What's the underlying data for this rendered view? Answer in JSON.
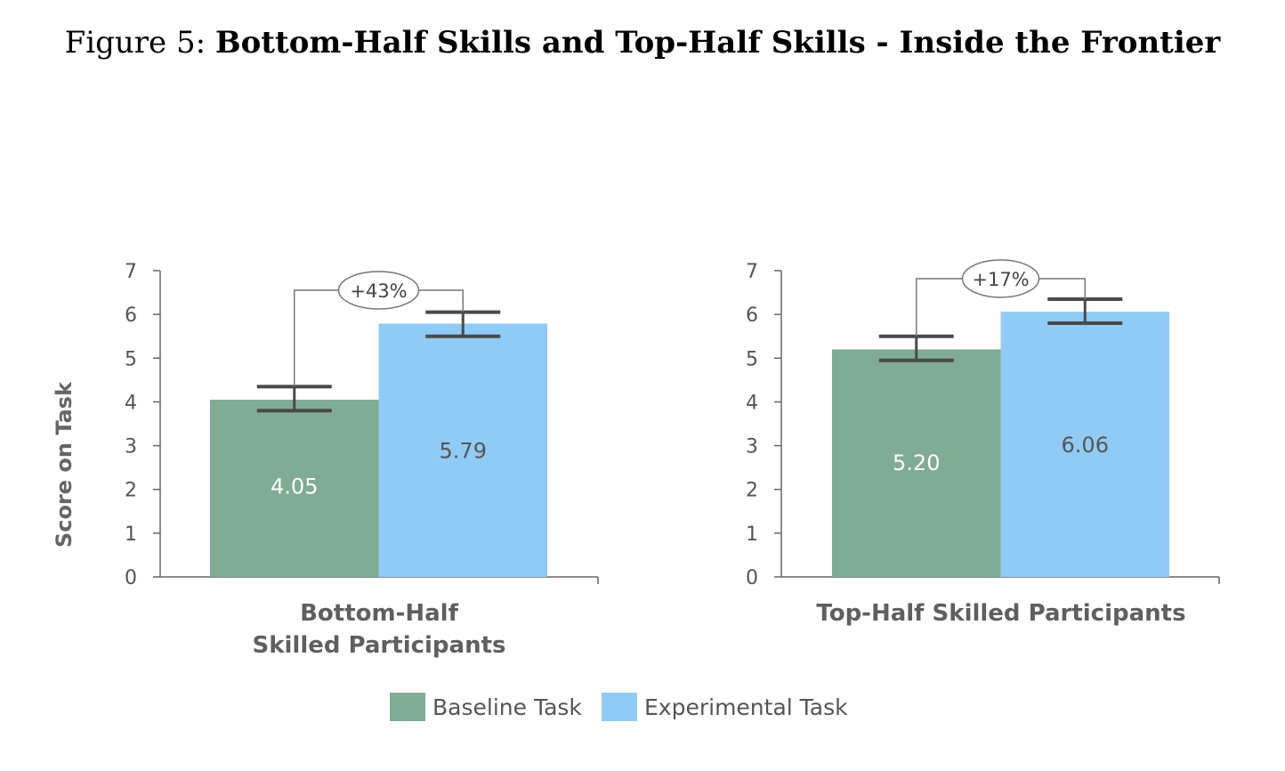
{
  "figure": {
    "prefix": "Figure 5:",
    "title": "Bottom-Half Skills and Top-Half Skills - Inside the Frontier"
  },
  "colors": {
    "baseline": "#80ab94",
    "experimental": "#90cbf5",
    "axis": "#666666",
    "errorbar": "#4a4a4a"
  },
  "chart_data": [
    {
      "type": "bar",
      "ylabel": "Score on Task",
      "ylim": [
        0,
        7
      ],
      "yticks": [
        "0",
        "1",
        "2",
        "3",
        "4",
        "5",
        "6",
        "7"
      ],
      "category": "Bottom-Half\nSkilled Participants",
      "series": [
        {
          "name": "Baseline Task",
          "value": 4.05,
          "label": "4.05",
          "error": [
            3.8,
            4.35
          ]
        },
        {
          "name": "Experimental Task",
          "value": 5.79,
          "label": "5.79",
          "error": [
            5.5,
            6.05
          ]
        }
      ],
      "annotation": "+43%"
    },
    {
      "type": "bar",
      "ylabel": "",
      "ylim": [
        0,
        7
      ],
      "yticks": [
        "0",
        "1",
        "2",
        "3",
        "4",
        "5",
        "6",
        "7"
      ],
      "category": "Top-Half Skilled Participants",
      "series": [
        {
          "name": "Baseline Task",
          "value": 5.2,
          "label": "5.20",
          "error": [
            4.95,
            5.5
          ]
        },
        {
          "name": "Experimental Task",
          "value": 6.06,
          "label": "6.06",
          "error": [
            5.8,
            6.35
          ]
        }
      ],
      "annotation": "+17%"
    }
  ],
  "legend": [
    "Baseline Task",
    "Experimental Task"
  ]
}
